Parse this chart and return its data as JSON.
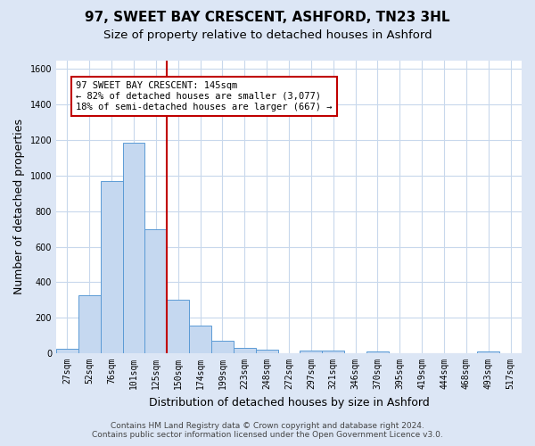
{
  "title_line1": "97, SWEET BAY CRESCENT, ASHFORD, TN23 3HL",
  "title_line2": "Size of property relative to detached houses in Ashford",
  "xlabel": "Distribution of detached houses by size in Ashford",
  "ylabel": "Number of detached properties",
  "bar_labels": [
    "27sqm",
    "52sqm",
    "76sqm",
    "101sqm",
    "125sqm",
    "150sqm",
    "174sqm",
    "199sqm",
    "223sqm",
    "248sqm",
    "272sqm",
    "297sqm",
    "321sqm",
    "346sqm",
    "370sqm",
    "395sqm",
    "419sqm",
    "444sqm",
    "468sqm",
    "493sqm",
    "517sqm"
  ],
  "bar_values": [
    25,
    325,
    970,
    1185,
    700,
    300,
    155,
    70,
    28,
    18,
    0,
    15,
    15,
    0,
    10,
    0,
    0,
    0,
    0,
    10,
    0
  ],
  "bar_color": "#c5d8f0",
  "bar_edge_color": "#5b9bd5",
  "bar_width": 1.0,
  "ylim": [
    0,
    1650
  ],
  "yticks": [
    0,
    200,
    400,
    600,
    800,
    1000,
    1200,
    1400,
    1600
  ],
  "vline_x": 4.5,
  "vline_color": "#c00000",
  "annotation_text": "97 SWEET BAY CRESCENT: 145sqm\n← 82% of detached houses are smaller (3,077)\n18% of semi-detached houses are larger (667) →",
  "annotation_box_color": "#ffffff",
  "annotation_box_edge_color": "#c00000",
  "fig_bg_color": "#dce6f5",
  "plot_bg_color": "#ffffff",
  "footer_line1": "Contains HM Land Registry data © Crown copyright and database right 2024.",
  "footer_line2": "Contains public sector information licensed under the Open Government Licence v3.0.",
  "title_fontsize": 11,
  "subtitle_fontsize": 9.5,
  "axis_label_fontsize": 9,
  "tick_fontsize": 7,
  "annotation_fontsize": 7.5,
  "footer_fontsize": 6.5
}
